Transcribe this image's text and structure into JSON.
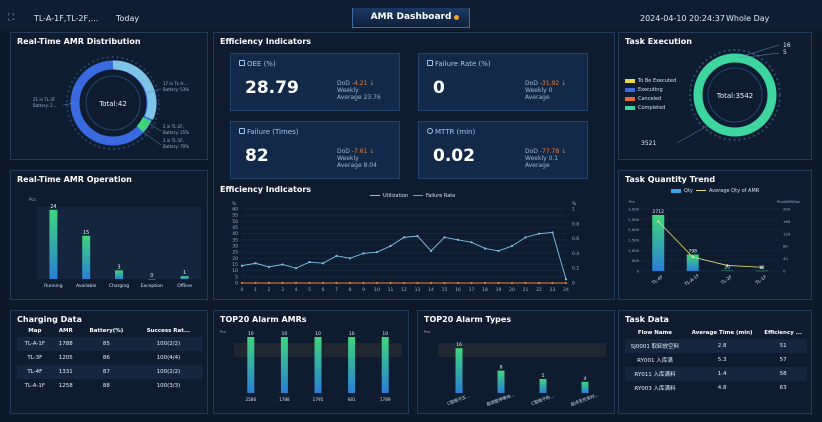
{
  "topbar": {
    "location": "TL-A-1F,TL-2F,...",
    "range": "Today",
    "title": "AMR Dashboard",
    "datetime": "2024-04-10 20:24:37",
    "period": "Whole Day"
  },
  "distribution": {
    "title": "Real-Time AMR Distribution",
    "total_label": "Total:42",
    "labels": [
      "17 in TL-4-...",
      "Battery: 53%",
      "21 in TL-3F",
      "Battery: 2...",
      "2 in TL-2F,",
      "Battery: 25%",
      "2 in TL-1F,",
      "Battery: 70%"
    ]
  },
  "operation": {
    "title": "Real-Time AMR Operation",
    "unit": "Pcs",
    "chart_data": {
      "type": "bar",
      "categories": [
        "Running",
        "Available",
        "Charging",
        "Exception",
        "Offline"
      ],
      "values": [
        24,
        15,
        3,
        0,
        1
      ],
      "ylim": [
        0,
        25
      ]
    }
  },
  "charging": {
    "title": "Charging Data",
    "headers": [
      "Map",
      "AMR",
      "Battery(%)",
      "Success Rat..."
    ],
    "rows": [
      [
        "TL-A-1F",
        "1788",
        "85",
        "100(2/2)"
      ],
      [
        "TL-3F",
        "1205",
        "86",
        "100(4/4)"
      ],
      [
        "TL-4F",
        "1331",
        "87",
        "100(2/2)"
      ],
      [
        "TL-A-1F",
        "1258",
        "88",
        "100(3/3)"
      ]
    ]
  },
  "efficiency": {
    "title": "Efficiency Indicators",
    "cards": [
      {
        "name": "OEE (%)",
        "value": "28.79",
        "dod": "DoD",
        "dod_v": "-4.21 ↓",
        "weekly": "Weekly",
        "weekly_v": "",
        "average": "Average",
        "average_v": "23.76"
      },
      {
        "name": "Failure Rate (%)",
        "value": "0",
        "dod": "DoD",
        "dod_v": "-31.92 ↓",
        "weekly": "Weekly",
        "weekly_v": "0",
        "average": "Average",
        "average_v": ""
      },
      {
        "name": "Failure (Times)",
        "value": "82",
        "dod": "DoD",
        "dod_v": "-7.61 ↓",
        "weekly": "Weekly",
        "weekly_v": "",
        "average": "Average",
        "average_v": "8.04"
      },
      {
        "name": "MTTR (min)",
        "value": "0.02",
        "dod": "DoD",
        "dod_v": "-77.78 ↓",
        "weekly": "Weekly",
        "weekly_v": "0.1",
        "average": "Average",
        "average_v": ""
      }
    ],
    "chart_title": "Efficiency Indicators",
    "chart_data": {
      "type": "line",
      "x": [
        0,
        1,
        2,
        3,
        4,
        5,
        6,
        7,
        8,
        9,
        10,
        11,
        12,
        13,
        14,
        15,
        16,
        17,
        18,
        19,
        20,
        21,
        22,
        23,
        24
      ],
      "series": [
        {
          "name": "Utilization",
          "values": [
            14,
            16,
            13,
            15,
            12,
            17,
            16,
            22,
            20,
            24,
            25,
            30,
            37,
            38,
            26,
            37,
            35,
            33,
            28,
            26,
            30,
            37,
            40,
            41,
            3
          ]
        },
        {
          "name": "Failure Rate",
          "values": [
            0,
            0,
            0,
            0,
            0,
            0,
            0,
            0,
            0,
            0,
            0,
            0,
            0,
            0,
            0,
            0,
            0,
            0,
            0,
            0,
            0,
            0,
            0,
            0,
            0
          ]
        }
      ],
      "ylim_left": [
        0,
        60
      ],
      "ylim_right": [
        0,
        1
      ],
      "y_unit_left": "%",
      "y_unit_right": "%",
      "left_ticks": [
        "60",
        "55",
        "50",
        "45",
        "40",
        "35",
        "30",
        "25",
        "20",
        "15",
        "10",
        "5",
        "0"
      ],
      "right_ticks": [
        "1",
        "0.8",
        "0.6",
        "0.4",
        "0.2",
        "0"
      ]
    }
  },
  "task_exec": {
    "title": "Task Execution",
    "total_label": "Total:3542",
    "legend": [
      "To Be Executed",
      "Executing",
      "Canceled",
      "Completed"
    ],
    "numbers": {
      "top1": "16",
      "top2": "5",
      "bottom": "3521"
    },
    "colors": [
      "#e6d84a",
      "#3a6ae0",
      "#e56a3a",
      "#3ed6a0"
    ]
  },
  "task_trend": {
    "title": "Task Quantity Trend",
    "legend": [
      "Qty",
      "Average Qty of AMR"
    ],
    "unit_left": "Pcs",
    "unit_right": "Pcs/AMR/Day",
    "chart_data": {
      "type": "bar",
      "categories": [
        "TL-4F",
        "TL-A-1F",
        "TL-2F",
        "TL-1F"
      ],
      "series": [
        {
          "name": "Qty",
          "values": [
            2712,
            798,
            20,
            12
          ]
        },
        {
          "name": "Average Qty of AMR",
          "values": [
            160,
            45,
            18,
            12
          ]
        }
      ],
      "ylim": [
        0,
        3000
      ],
      "ylim_right": [
        0,
        200
      ],
      "left_ticks": [
        "3,000",
        "2,500",
        "2,000",
        "1,500",
        "1,000",
        "500",
        "0"
      ],
      "right_ticks": [
        "200",
        "160",
        "120",
        "80",
        "40",
        "0"
      ],
      "bar_labels": [
        "2712",
        "798",
        "20",
        "12"
      ]
    }
  },
  "top20_amr": {
    "title": "TOP20 Alarm AMRs",
    "unit": "Pcs",
    "chart_data": {
      "type": "bar",
      "categories": [
        "2586",
        "1788",
        "1795",
        "681",
        "1789"
      ],
      "values": [
        10,
        10,
        10,
        10,
        10
      ],
      "ylim": [
        0,
        10
      ]
    }
  },
  "top20_types": {
    "title": "TOP20 Alarm Types",
    "unit": "Pcs",
    "chart_data": {
      "type": "bar",
      "categories": [
        "C型相子正...",
        "取货暂停等待...",
        "C型相子检...",
        "起点无任务时..."
      ],
      "values": [
        16,
        8,
        5,
        4
      ],
      "ylim": [
        0,
        20
      ]
    }
  },
  "task_data": {
    "title": "Task Data",
    "headers": [
      "Flow Name",
      "Average Time (min)",
      "Efficiency ..."
    ],
    "rows": [
      [
        "SJ0001 取卸放空料",
        "2.8",
        "51"
      ],
      [
        "RY001 入库满",
        "5.3",
        "57"
      ],
      [
        "RY011 入库满料",
        "1.4",
        "58"
      ],
      [
        "RY003 入库满料",
        "4.8",
        "63"
      ]
    ]
  }
}
